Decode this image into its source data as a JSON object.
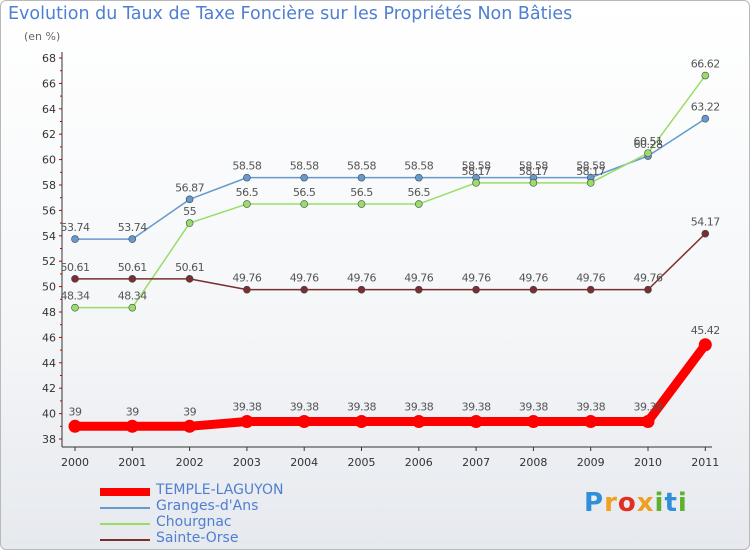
{
  "title": "Evolution du Taux de Taxe Foncière sur les Propriétés Non Bâties",
  "unit_label": "(en %)",
  "logo": {
    "text": "Proxiti"
  },
  "chart_data": {
    "type": "line",
    "title": "Evolution du Taux de Taxe Foncière sur les Propriétés Non Bâties",
    "ylabel": "(en %)",
    "xlabel": "",
    "x": [
      "2000",
      "2001",
      "2002",
      "2003",
      "2004",
      "2005",
      "2006",
      "2007",
      "2008",
      "2009",
      "2010",
      "2011"
    ],
    "ylim": [
      38,
      68
    ],
    "yticks": [
      38,
      40,
      42,
      44,
      46,
      48,
      50,
      52,
      54,
      56,
      58,
      60,
      62,
      64,
      66,
      68
    ],
    "grid": false,
    "legend": "bottom-left",
    "series": [
      {
        "name": "TEMPLE-LAGUYON",
        "color": "#ff0000",
        "values": [
          39,
          39,
          39,
          39.38,
          39.38,
          39.38,
          39.38,
          39.38,
          39.38,
          39.38,
          39.38,
          45.42
        ],
        "labels": [
          "39",
          "39",
          "39",
          "39.38",
          "39.38",
          "39.38",
          "39.38",
          "39.38",
          "39.38",
          "39.38",
          "39.38",
          "45.42"
        ]
      },
      {
        "name": "Granges-d'Ans",
        "color": "#6699cc",
        "values": [
          53.74,
          53.74,
          56.87,
          58.58,
          58.58,
          58.58,
          58.58,
          58.58,
          58.58,
          58.58,
          60.28,
          63.22
        ],
        "labels": [
          "53.74",
          "53.74",
          "56.87",
          "58.58",
          "58.58",
          "58.58",
          "58.58",
          "58.58",
          "58.58",
          "58.58",
          "60.28",
          "63.22"
        ]
      },
      {
        "name": "Chourgnac",
        "color": "#99dd66",
        "values": [
          48.34,
          48.34,
          55,
          56.5,
          56.5,
          56.5,
          56.5,
          58.17,
          58.17,
          58.17,
          60.51,
          66.62
        ],
        "labels": [
          "48.34",
          "48.34",
          "55",
          "56.5",
          "56.5",
          "56.5",
          "56.5",
          "58.17",
          "58.17",
          "58.17",
          "60.51",
          "66.62"
        ]
      },
      {
        "name": "Sainte-Orse",
        "color": "#7a2e2e",
        "values": [
          50.61,
          50.61,
          50.61,
          49.76,
          49.76,
          49.76,
          49.76,
          49.76,
          49.76,
          49.76,
          49.76,
          54.17
        ],
        "labels": [
          "50.61",
          "50.61",
          "50.61",
          "49.76",
          "49.76",
          "49.76",
          "49.76",
          "49.76",
          "49.76",
          "49.76",
          "49.76",
          "54.17"
        ]
      }
    ]
  }
}
